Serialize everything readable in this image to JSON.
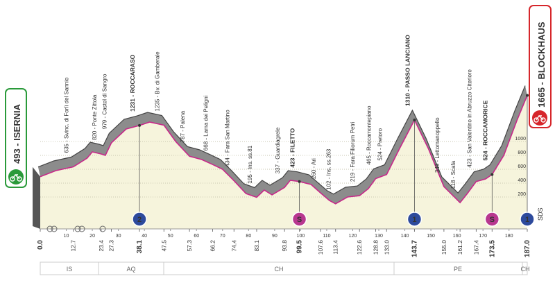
{
  "chart_data": {
    "type": "area",
    "start": "493 - ISERNIA",
    "finish": "1665 - BLOCKHAUS",
    "logo": "SDS",
    "x": [
      0,
      6,
      12.7,
      18,
      20,
      23.4,
      25,
      27.3,
      33,
      38.1,
      42,
      47.5,
      52,
      57.3,
      62,
      66.2,
      70,
      74.4,
      79,
      83.1,
      86,
      89,
      93.8,
      96,
      99.5,
      104,
      107.6,
      111,
      113.4,
      118,
      122.6,
      126,
      128.8,
      133,
      138,
      143.7,
      149,
      155,
      161.2,
      164,
      167.4,
      171,
      173.5,
      178,
      183,
      187
    ],
    "values": [
      493,
      580,
      635,
      760,
      850,
      820,
      800,
      979,
      1180,
      1231,
      1280,
      1235,
      1000,
      787,
      740,
      668,
      600,
      434,
      250,
      195,
      300,
      230,
      337,
      440,
      423,
      380,
      260,
      150,
      102,
      200,
      219,
      320,
      465,
      524,
      900,
      1310,
      900,
      349,
      118,
      250,
      423,
      460,
      524,
      800,
      1300,
      1665
    ],
    "color": "#c8288a",
    "band_color": "#8c8c8c",
    "fill_color": "#f6f4dc",
    "xlim": [
      0,
      187
    ],
    "ylim": [
      0,
      1800
    ],
    "xticks": [
      10,
      20,
      30,
      40,
      50,
      60,
      70,
      80,
      90,
      100,
      110,
      120,
      130,
      140,
      150,
      160,
      170,
      180
    ],
    "yticks": [
      200,
      400,
      600,
      800,
      1000
    ],
    "grid": true,
    "waypoints": [
      {
        "km": {
          "value": 0,
          "label": "0.0"
        },
        "name": "493 - ISERNIA",
        "bold": true
      },
      {
        "km": 12.7,
        "name": "635 - Svinc. di Forlì del Sannio",
        "bold": false
      },
      {
        "km": 23.4,
        "name": "820 - Ponte Zittola",
        "bold": false
      },
      {
        "km": 27.3,
        "name": "979 - Castel di Sangro",
        "bold": false
      },
      {
        "km": 38.1,
        "name": "1231 - ROCCARASO",
        "bold": true
      },
      {
        "km": 47.5,
        "name": "1235 - Bv. di Gamberale",
        "bold": false
      },
      {
        "km": 57.3,
        "name": "787 - Palena",
        "bold": false
      },
      {
        "km": 66.2,
        "name": "668 - Lama dei Peligni",
        "bold": false
      },
      {
        "km": 74.4,
        "name": "434 - Fara San Martino",
        "bold": false
      },
      {
        "km": 83.1,
        "name": "195 - Ins. ss.81",
        "bold": false
      },
      {
        "km": 93.8,
        "name": "337 - Guardiagrele",
        "bold": false
      },
      {
        "km": 99.5,
        "name": "423 - FILETTO",
        "bold": true
      },
      {
        "km": 107.6,
        "name": "260 - Ari",
        "bold": false
      },
      {
        "km": 113.4,
        "name": "102 - Ins. ss.263",
        "bold": false
      },
      {
        "km": 122.6,
        "name": "219 - Fara Filiorum Petri",
        "bold": false
      },
      {
        "km": 128.8,
        "name": "465 - Roccamontepiano",
        "bold": false
      },
      {
        "km": {
          "value": 133,
          "label": "133.0"
        },
        "name": "524 - Pretoro",
        "bold": false
      },
      {
        "km": 143.7,
        "name": "1310 - PASSO LANCIANO",
        "bold": true
      },
      {
        "km": {
          "value": 155,
          "label": "155.0"
        },
        "name": "349 - Lettomanoppello",
        "bold": false
      },
      {
        "km": 161.2,
        "name": "118 - Scafa",
        "bold": false
      },
      {
        "km": 167.4,
        "name": "423 - San Valentino in Abruzzo Citeriore",
        "bold": false
      },
      {
        "km": 173.5,
        "name": "524 - ROCCAMORICE",
        "bold": true
      },
      {
        "km": {
          "value": 187,
          "label": "187.0"
        },
        "name": "1665 - BLOCKHAUS",
        "bold": true
      }
    ],
    "markers": [
      {
        "km": 38.1,
        "label": "2",
        "color": "#2d4a9c"
      },
      {
        "km": 99.5,
        "label": "S",
        "color": "#b8378f"
      },
      {
        "km": 143.7,
        "label": "1",
        "color": "#2d4a9c"
      },
      {
        "km": 173.5,
        "label": "S",
        "color": "#b8378f"
      },
      {
        "km": 187,
        "label": "1",
        "color": "#2d4a9c"
      }
    ],
    "regions": [
      "IS",
      "AQ",
      "CH",
      "PE",
      "CH"
    ]
  }
}
